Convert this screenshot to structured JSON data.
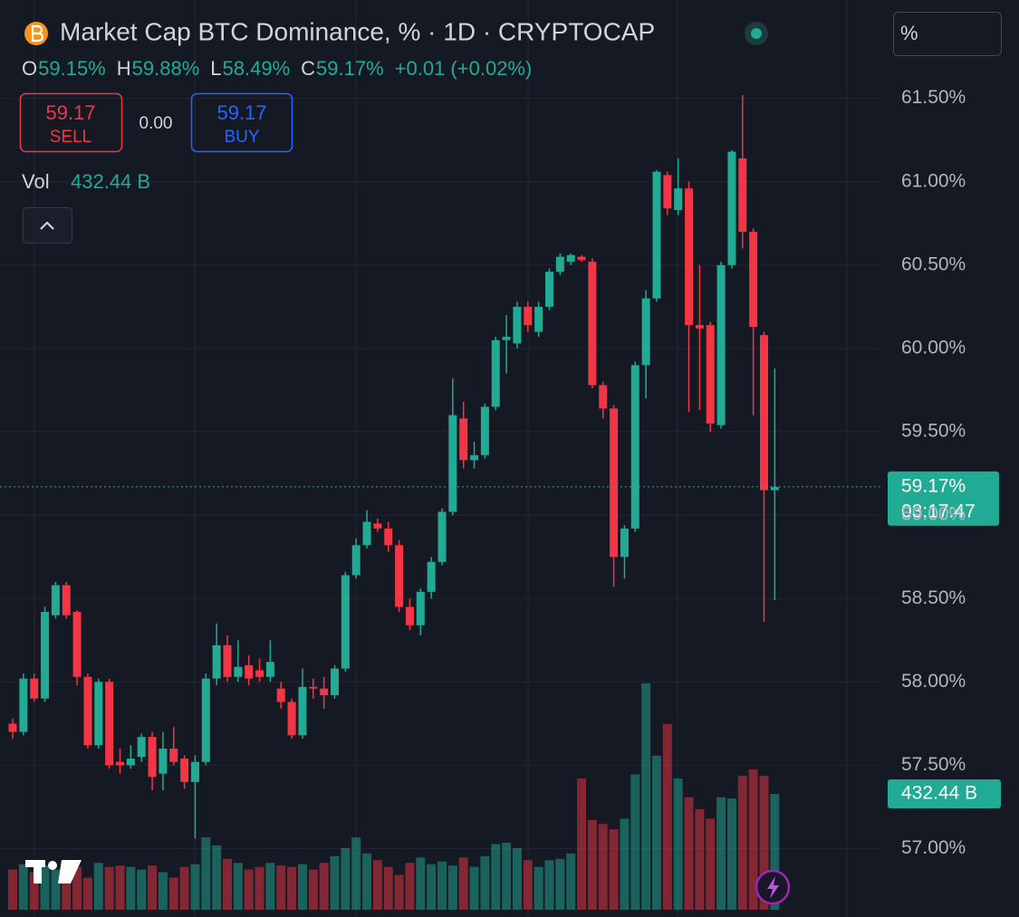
{
  "chart_data": {
    "type": "candlestick",
    "symbol": "Market Cap BTC Dominance, % · 1D · CRYPTOCAP",
    "ohlc_legend": [
      {
        "key": "O",
        "label": "59.15%"
      },
      {
        "key": "H",
        "label": "59.88%"
      },
      {
        "key": "L",
        "label": "58.49%"
      },
      {
        "key": "C",
        "label": "59.17%"
      }
    ],
    "change": "+0.01 (+0.02%)",
    "sell": {
      "price": "59.17",
      "label": "SELL"
    },
    "spread": "0.00",
    "buy": {
      "price": "59.17",
      "label": "BUY"
    },
    "volume_title": "Vol",
    "volume_value_label": "432.44 B",
    "scale_unit": "%",
    "last_price_label": "59.17%",
    "countdown": "03:17:47",
    "up_color": "#22ab94",
    "down_color": "#f23645",
    "grid": true,
    "ylim": [
      56.59,
      62.09
    ],
    "yticks": [
      {
        "value": 57,
        "label": "57.00%"
      },
      {
        "value": 57.5,
        "label": "57.50%"
      },
      {
        "value": 58,
        "label": "58.00%"
      },
      {
        "value": 58.5,
        "label": "58.50%"
      },
      {
        "value": 59,
        "label": "59.00%"
      },
      {
        "value": 59.5,
        "label": "59.50%"
      },
      {
        "value": 60,
        "label": "60.00%"
      },
      {
        "value": 60.5,
        "label": "60.50%"
      },
      {
        "value": 61,
        "label": "61.00%"
      },
      {
        "value": 61.5,
        "label": "61.50%"
      }
    ],
    "volume_lim": [
      0,
      1000
    ],
    "open": [
      57.75,
      57.7,
      58.02,
      57.9,
      58.4,
      58.58,
      58.42,
      58.03,
      57.62,
      58.0,
      57.52,
      57.5,
      57.55,
      57.67,
      57.45,
      57.6,
      57.54,
      57.4,
      57.52,
      58.02,
      58.22,
      58.03,
      58.1,
      58.07,
      58.03,
      57.96,
      57.88,
      57.68,
      57.97,
      57.96,
      57.92,
      58.08,
      58.64,
      58.82,
      58.95,
      58.92,
      58.82,
      58.45,
      58.34,
      58.54,
      58.72,
      59.02,
      59.58,
      59.33,
      59.36,
      59.65,
      60.05,
      60.03,
      60.25,
      60.1,
      60.25,
      60.46,
      60.52,
      60.55,
      60.52,
      59.78,
      59.64,
      58.75,
      58.92,
      59.9,
      60.3,
      61.04,
      60.83,
      60.96,
      60.14,
      60.14,
      59.54,
      60.5,
      61.14,
      60.7,
      60.08,
      59.15
    ],
    "high": [
      57.78,
      58.05,
      58.05,
      58.45,
      58.6,
      58.6,
      58.43,
      58.05,
      58.02,
      58.02,
      57.6,
      57.62,
      57.69,
      57.7,
      57.7,
      57.73,
      57.56,
      57.56,
      58.05,
      58.35,
      58.28,
      58.25,
      58.16,
      58.14,
      58.25,
      58.0,
      57.9,
      58.08,
      58.02,
      58.03,
      58.1,
      58.66,
      58.86,
      59.03,
      58.98,
      58.96,
      58.85,
      58.5,
      58.56,
      58.75,
      59.04,
      59.82,
      59.68,
      59.44,
      59.67,
      60.07,
      60.2,
      60.28,
      60.28,
      60.28,
      60.48,
      60.57,
      60.57,
      60.56,
      60.54,
      59.8,
      59.66,
      58.94,
      59.92,
      60.35,
      61.07,
      61.06,
      61.14,
      61.0,
      60.5,
      60.16,
      60.52,
      61.19,
      61.52,
      60.72,
      60.1,
      59.88
    ],
    "low": [
      57.66,
      57.68,
      57.88,
      57.88,
      58.38,
      58.38,
      57.98,
      57.6,
      57.6,
      57.48,
      57.45,
      57.48,
      57.52,
      57.35,
      57.35,
      57.5,
      57.36,
      57.06,
      57.5,
      57.98,
      58.0,
      58.0,
      57.98,
      58.0,
      58.0,
      57.84,
      57.66,
      57.66,
      57.9,
      57.84,
      57.9,
      58.06,
      58.62,
      58.8,
      58.9,
      58.78,
      58.42,
      58.31,
      58.28,
      58.5,
      58.7,
      59.0,
      59.28,
      59.28,
      59.34,
      59.63,
      59.85,
      60.0,
      60.1,
      60.07,
      60.23,
      60.44,
      60.5,
      60.52,
      59.76,
      59.58,
      58.57,
      58.62,
      58.9,
      59.7,
      60.28,
      60.8,
      60.8,
      59.62,
      59.63,
      59.5,
      59.52,
      60.48,
      60.6,
      59.6,
      58.36,
      58.49
    ],
    "close": [
      57.7,
      58.02,
      57.9,
      58.42,
      58.58,
      58.4,
      58.03,
      57.62,
      58.0,
      57.5,
      57.5,
      57.54,
      57.67,
      57.43,
      57.6,
      57.52,
      57.4,
      57.52,
      58.02,
      58.22,
      58.03,
      58.09,
      58.02,
      58.03,
      58.12,
      57.88,
      57.68,
      57.97,
      57.96,
      57.92,
      58.08,
      58.64,
      58.82,
      58.96,
      58.92,
      58.82,
      58.45,
      58.34,
      58.54,
      58.72,
      59.02,
      59.6,
      59.33,
      59.36,
      59.65,
      60.05,
      60.07,
      60.25,
      60.14,
      60.25,
      60.46,
      60.55,
      60.56,
      60.53,
      59.78,
      59.64,
      58.75,
      58.92,
      59.9,
      60.3,
      61.06,
      60.84,
      60.96,
      60.14,
      60.12,
      59.55,
      60.5,
      61.18,
      60.7,
      60.13,
      59.15,
      59.17
    ],
    "volume": [
      150,
      170,
      140,
      165,
      150,
      135,
      160,
      120,
      175,
      160,
      165,
      160,
      150,
      165,
      140,
      120,
      160,
      170,
      270,
      240,
      190,
      175,
      150,
      160,
      175,
      165,
      160,
      170,
      150,
      175,
      200,
      230,
      270,
      210,
      185,
      160,
      130,
      175,
      195,
      170,
      180,
      165,
      195,
      160,
      200,
      245,
      250,
      230,
      185,
      160,
      185,
      190,
      210,
      490,
      335,
      320,
      300,
      340,
      505,
      845,
      575,
      693,
      490,
      420,
      375,
      340,
      420,
      415,
      500,
      524,
      500,
      432.44
    ]
  }
}
